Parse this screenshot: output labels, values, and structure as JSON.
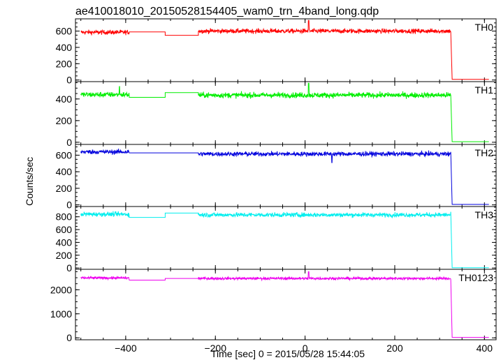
{
  "chart_data": {
    "type": "line",
    "title": "ae410018010_20150528154405_wam0_trn_4band_long.qdp",
    "xlabel": "Time [sec] 0 = 2015/05/28 15:44:05",
    "ylabel": "Counts/sec",
    "xlim": [
      -512,
      426
    ],
    "xticks": [
      -400,
      -200,
      0,
      200,
      400
    ],
    "xtick_labels": [
      "−400",
      "−200",
      "0",
      "200",
      "400"
    ],
    "grid": false,
    "panels": [
      {
        "name": "TH0",
        "color": "#ff0000",
        "ylim": [
          -20,
          750
        ],
        "yticks": [
          0,
          200,
          400,
          600
        ],
        "ytick_labels": [
          "0",
          "200",
          "400",
          "600"
        ],
        "noise": 20,
        "segments": [
          {
            "x": [
              -500,
              -392
            ],
            "y": 585
          },
          {
            "x": [
              -392,
              -312
            ],
            "y": 590
          },
          {
            "x": [
              -312,
              -238
            ],
            "y": 548
          },
          {
            "x": [
              -238,
              325
            ],
            "y": 600
          }
        ],
        "drop": {
          "x": 328,
          "y": 8,
          "end": 410
        },
        "spikes": [
          {
            "x": 8,
            "y": 730
          }
        ]
      },
      {
        "name": "TH1",
        "color": "#00ee00",
        "ylim": [
          -20,
          560
        ],
        "yticks": [
          0,
          200,
          400
        ],
        "ytick_labels": [
          "0",
          "200",
          "400"
        ],
        "noise": 18,
        "segments": [
          {
            "x": [
              -500,
              -392
            ],
            "y": 440
          },
          {
            "x": [
              -392,
              -312
            ],
            "y": 415
          },
          {
            "x": [
              -312,
              -238
            ],
            "y": 458
          },
          {
            "x": [
              -238,
              325
            ],
            "y": 435
          }
        ],
        "drop": {
          "x": 328,
          "y": 5,
          "end": 410
        },
        "spikes": [
          {
            "x": 8,
            "y": 545
          },
          {
            "x": -414,
            "y": 515
          }
        ]
      },
      {
        "name": "TH2",
        "color": "#0000dd",
        "ylim": [
          -20,
          730
        ],
        "yticks": [
          0,
          200,
          400,
          600
        ],
        "ytick_labels": [
          "0",
          "200",
          "400",
          "600"
        ],
        "noise": 20,
        "segments": [
          {
            "x": [
              -500,
              -392
            ],
            "y": 640
          },
          {
            "x": [
              -392,
              -312
            ],
            "y": 628
          },
          {
            "x": [
              -312,
              -238
            ],
            "y": 628
          },
          {
            "x": [
              -238,
              325
            ],
            "y": 615
          }
        ],
        "drop": {
          "x": 328,
          "y": 5,
          "end": 410
        },
        "spikes": [
          {
            "x": 60,
            "y": 510
          }
        ]
      },
      {
        "name": "TH3",
        "color": "#00eeee",
        "ylim": [
          -20,
          960
        ],
        "yticks": [
          0,
          200,
          400,
          600,
          800
        ],
        "ytick_labels": [
          "0",
          "200",
          "400",
          "600",
          "800"
        ],
        "noise": 25,
        "segments": [
          {
            "x": [
              -500,
              -392
            ],
            "y": 840
          },
          {
            "x": [
              -392,
              -312
            ],
            "y": 790
          },
          {
            "x": [
              -312,
              -238
            ],
            "y": 858
          },
          {
            "x": [
              -238,
              325
            ],
            "y": 830
          }
        ],
        "drop": {
          "x": 328,
          "y": 5,
          "end": 410
        },
        "spikes": []
      },
      {
        "name": "TH0123",
        "color": "#ee00ee",
        "ylim": [
          -80,
          2850
        ],
        "yticks": [
          0,
          1000,
          2000
        ],
        "ytick_labels": [
          "0",
          "1000",
          "2000"
        ],
        "noise": 40,
        "segments": [
          {
            "x": [
              -500,
              -392
            ],
            "y": 2490
          },
          {
            "x": [
              -392,
              -312
            ],
            "y": 2400
          },
          {
            "x": [
              -312,
              -238
            ],
            "y": 2470
          },
          {
            "x": [
              -238,
              325
            ],
            "y": 2470
          }
        ],
        "drop": {
          "x": 328,
          "y": 20,
          "end": 410
        },
        "spikes": [
          {
            "x": 8,
            "y": 2750
          }
        ]
      }
    ]
  }
}
